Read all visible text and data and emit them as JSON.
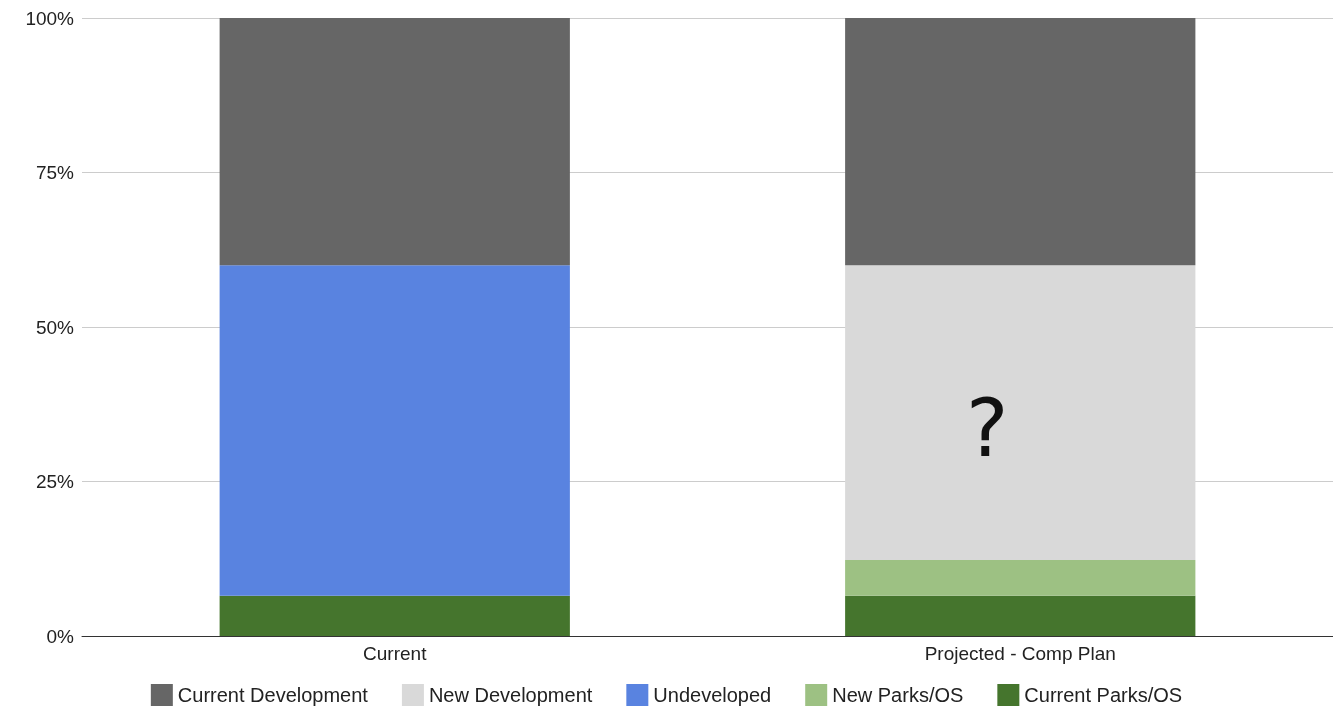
{
  "chart_data": {
    "type": "bar",
    "stacked": true,
    "categories": [
      "Current",
      "Projected - Comp Plan"
    ],
    "series": [
      {
        "name": "Current Parks/OS",
        "color": "#45752d",
        "values": [
          6.5,
          6.5
        ]
      },
      {
        "name": "New Parks/OS",
        "color": "#9dc183",
        "values": [
          0,
          5.8
        ]
      },
      {
        "name": "Undeveloped",
        "color": "#5983e0",
        "values": [
          53.5,
          0
        ]
      },
      {
        "name": "New Development",
        "color": "#d9d9d9",
        "values": [
          0,
          47.7
        ]
      },
      {
        "name": "Current Development",
        "color": "#666666",
        "values": [
          40,
          40
        ]
      }
    ],
    "ylim": [
      0,
      100
    ],
    "yticks": [
      {
        "value": 0,
        "label": "0%"
      },
      {
        "value": 25,
        "label": "25%"
      },
      {
        "value": 50,
        "label": "50%"
      },
      {
        "value": 75,
        "label": "75%"
      },
      {
        "value": 100,
        "label": "100%"
      }
    ],
    "annotations": [
      "?"
    ],
    "grid": "y",
    "legend": "bottom"
  }
}
